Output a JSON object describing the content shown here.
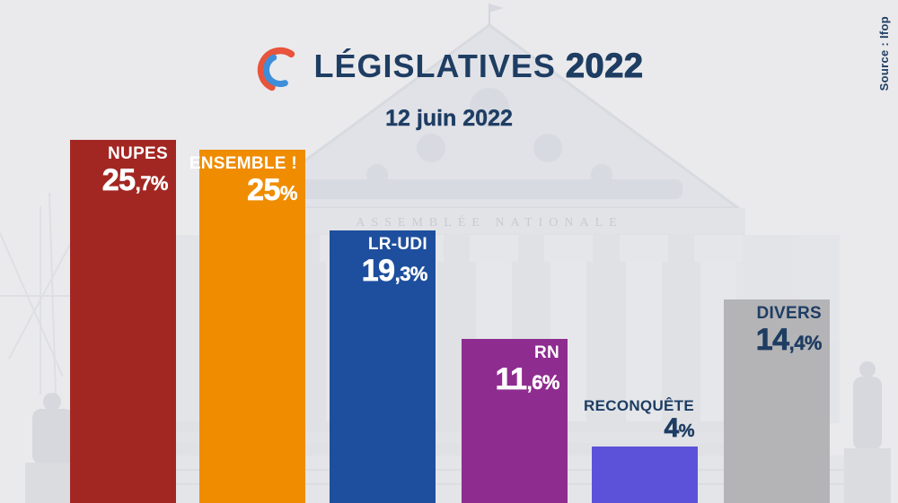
{
  "header": {
    "title_main": "LÉGISLATIVES",
    "title_year": "2022",
    "subtitle": "12 juin 2022",
    "source": "Source : Ifop"
  },
  "background": {
    "inscription": "ASSEMBLÉE NATIONALE"
  },
  "colors": {
    "background": "#EAEAEC",
    "navy_text": "#1E3D63",
    "logo_red": "#E8543C",
    "logo_blue": "#3E8ED9",
    "white_label": "#FFFFFF"
  },
  "chart_data": {
    "type": "bar",
    "title": "LÉGISLATIVES 2022",
    "subtitle": "12 juin 2022",
    "source": "Source : Ifop",
    "unit": "%",
    "ylim": [
      0,
      26
    ],
    "grid": false,
    "legend": "none",
    "categories": [
      "NUPES",
      "ENSEMBLE !",
      "LR-UDI",
      "RN",
      "RECONQUÊTE",
      "DIVERS"
    ],
    "values": [
      25.7,
      25,
      19.3,
      11.6,
      4,
      14.4
    ],
    "bars": [
      {
        "name": "NUPES",
        "value": 25.7,
        "display": "25,7%",
        "display_int": "25",
        "display_frac": ",7%",
        "color": "#A22723",
        "label_color": "#FFFFFF",
        "label_position": "inside"
      },
      {
        "name": "ENSEMBLE !",
        "value": 25,
        "display": "25%",
        "display_int": "25",
        "display_frac": "%",
        "color": "#F08C00",
        "label_color": "#FFFFFF",
        "label_position": "inside"
      },
      {
        "name": "LR-UDI",
        "value": 19.3,
        "display": "19,3%",
        "display_int": "19",
        "display_frac": ",3%",
        "color": "#1E4F9E",
        "label_color": "#FFFFFF",
        "label_position": "inside"
      },
      {
        "name": "RN",
        "value": 11.6,
        "display": "11,6%",
        "display_int": "11",
        "display_frac": ",6%",
        "color": "#8F2C90",
        "label_color": "#FFFFFF",
        "label_position": "inside"
      },
      {
        "name": "RECONQUÊTE",
        "value": 4,
        "display": "4%",
        "display_int": "4",
        "display_frac": "%",
        "color": "#5C51D9",
        "label_color": "#1E3D63",
        "label_position": "above"
      },
      {
        "name": "DIVERS",
        "value": 14.4,
        "display": "14,4%",
        "display_int": "14",
        "display_frac": ",4%",
        "color": "#B4B4B6",
        "label_color": "#1E3D63",
        "label_position": "inside"
      }
    ]
  }
}
